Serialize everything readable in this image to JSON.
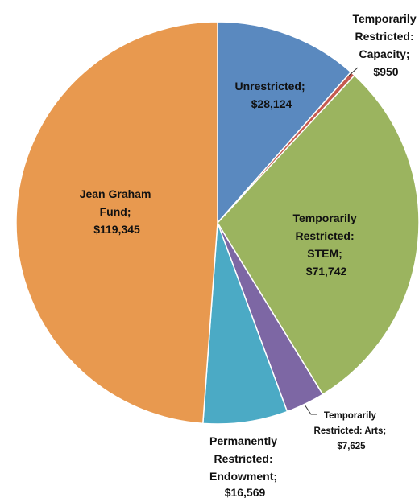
{
  "chart_data": {
    "type": "pie",
    "title": "",
    "start_angle_deg": 0,
    "direction": "clockwise",
    "slices": [
      {
        "label": "Unrestricted;",
        "value_label": "$28,124",
        "value": 28124,
        "color": "#5A89BF"
      },
      {
        "label": "Temporarily Restricted: Capacity;",
        "value_label": "$950",
        "value": 950,
        "color": "#C55A4F"
      },
      {
        "label": "Temporarily Restricted: STEM;",
        "value_label": "$71,742",
        "value": 71742,
        "color": "#9BB45F"
      },
      {
        "label": "Temporarily Restricted: Arts;",
        "value_label": "$7,625",
        "value": 7625,
        "color": "#7D67A4"
      },
      {
        "label": "Permanently Restricted: Endowment;",
        "value_label": "$16,569",
        "value": 16569,
        "color": "#4BAAC5"
      },
      {
        "label": "Jean Graham Fund;",
        "value_label": "$119,345",
        "value": 119345,
        "color": "#E8994F"
      }
    ]
  }
}
